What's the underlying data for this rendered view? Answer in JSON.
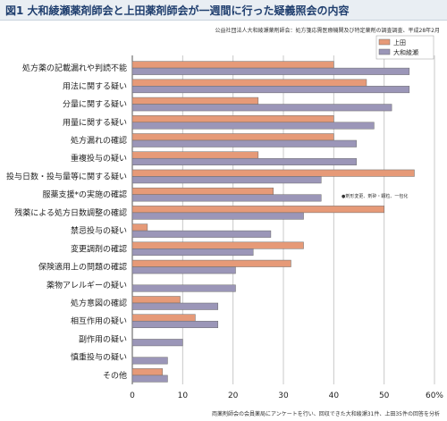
{
  "title": "図1 大和綾瀬薬剤師会と上田薬剤師会が一週間に行った疑義照会の内容",
  "source": "公益社団法人大和綾瀬薬剤師会：処方箋応需医療機関及び特定薬剤の調査調査、平成28年2月",
  "footnote": "両薬剤師会の会員薬局にアンケートを行い、回収できた大和綾瀬31件、上田35件の回答を分析",
  "annotation": "●剤形変更、剤砕・顆粒、一包化",
  "colors": {
    "ueda": "#e69a78",
    "yamato": "#9b96b8",
    "grid": "#c8c8c8"
  },
  "chart_data": {
    "type": "bar",
    "orientation": "horizontal",
    "xlim": [
      0,
      60
    ],
    "xticks": [
      "0",
      "10",
      "20",
      "30",
      "40",
      "50",
      "60%"
    ],
    "grid": true,
    "legend_position": "top-right",
    "categories": [
      "処方薬の記載漏れや判読不能",
      "用法に関する疑い",
      "分量に関する疑い",
      "用量に関する疑い",
      "処方漏れの確認",
      "重複投与の疑い",
      "投与日数・投与量等に関する疑い",
      "服薬支援*の実施の確認",
      "残薬による処方日数調整の確認",
      "禁忌投与の疑い",
      "変更調剤の確認",
      "保険適用上の問題の確認",
      "薬物アレルギーの疑い",
      "処方意図の確認",
      "相互作用の疑い",
      "副作用の疑い",
      "慎重投与の疑い",
      "その他"
    ],
    "series": [
      {
        "name": "上田",
        "values": [
          40,
          46.5,
          25,
          40,
          40,
          25,
          56,
          28,
          50,
          3,
          34,
          31.5,
          0,
          9.5,
          12.5,
          0,
          0,
          6
        ]
      },
      {
        "name": "大和綾瀬",
        "values": [
          55,
          55,
          51.5,
          48,
          44.5,
          44.5,
          37.5,
          37.5,
          34,
          27.5,
          24,
          20.5,
          20.5,
          17,
          17,
          10,
          7,
          7
        ]
      }
    ]
  }
}
